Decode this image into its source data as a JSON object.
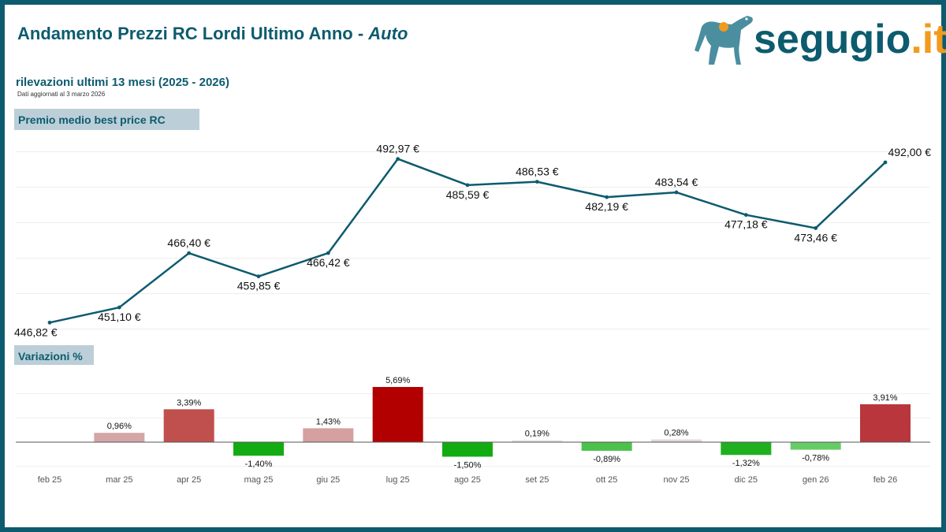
{
  "header": {
    "title": "Andamento Prezzi RC Lordi Ultimo Anno - ",
    "title_emphasis": "Auto",
    "subtitle": "rilevazioni ultimi 13 mesi (2025 -  2026)",
    "updated": "Dati aggiornati al  3 marzo 2026"
  },
  "logo": {
    "name": "segugio",
    "dot": ".",
    "tld": "it"
  },
  "colors": {
    "brand": "#0d5b6e",
    "accent": "#f29a1e",
    "label_bg": "#bccfd8",
    "line": "#0d5b6e"
  },
  "chart_data": [
    {
      "type": "line",
      "title": "Premio medio best price RC",
      "categories": [
        "feb 25",
        "mar 25",
        "apr 25",
        "mag 25",
        "giu 25",
        "lug 25",
        "ago 25",
        "set 25",
        "ott 25",
        "nov 25",
        "dic 25",
        "gen 26",
        "feb 26"
      ],
      "values": [
        446.82,
        451.1,
        466.4,
        459.85,
        466.42,
        492.97,
        485.59,
        486.53,
        482.19,
        483.54,
        477.18,
        473.46,
        492.0
      ],
      "labels": [
        "446,82 €",
        "451,10 €",
        "466,40 €",
        "459,85 €",
        "466,42 €",
        "492,97 €",
        "485,59 €",
        "486,53 €",
        "482,19 €",
        "483,54 €",
        "477,18 €",
        "473,46 €",
        "492,00 €"
      ],
      "ylim": [
        440,
        500
      ],
      "grid": true
    },
    {
      "type": "bar",
      "title": "Variazioni %",
      "categories": [
        "feb 25",
        "mar 25",
        "apr 25",
        "mag 25",
        "giu 25",
        "lug 25",
        "ago 25",
        "set 25",
        "ott 25",
        "nov 25",
        "dic 25",
        "gen 26",
        "feb 26"
      ],
      "values": [
        null,
        0.96,
        3.39,
        -1.4,
        1.43,
        5.69,
        -1.5,
        0.19,
        -0.89,
        0.28,
        -1.32,
        -0.78,
        3.91
      ],
      "labels": [
        "",
        "0,96%",
        "3,39%",
        "-1,40%",
        "1,43%",
        "5,69%",
        "-1,50%",
        "0,19%",
        "-0,89%",
        "0,28%",
        "-1,32%",
        "-0,78%",
        "3,91%"
      ],
      "bar_colors": [
        "#ffffff",
        "#d4a6a6",
        "#c0504d",
        "#12ac12",
        "#d4a0a0",
        "#b20000",
        "#12ac12",
        "#e6e0e0",
        "#4cc24c",
        "#e2d8d8",
        "#1fb01f",
        "#66cc66",
        "#b8363c"
      ],
      "ylim": [
        -2.5,
        7
      ],
      "grid": true
    }
  ]
}
